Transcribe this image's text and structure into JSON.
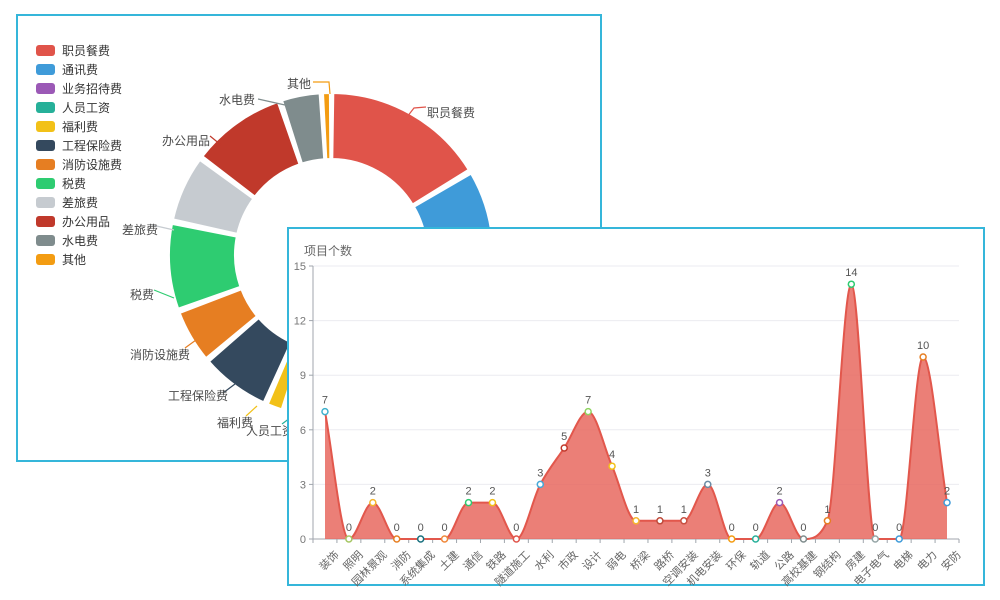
{
  "pie_panel": {
    "legend_items": [
      "职员餐费",
      "通讯费",
      "业务招待费",
      "人员工资",
      "福利费",
      "工程保险费",
      "消防设施费",
      "税费",
      "差旅费",
      "办公用品",
      "水电费",
      "其他"
    ]
  },
  "line_panel": {
    "title": "项目个数"
  },
  "chart_data": [
    {
      "type": "pie",
      "title": "",
      "legend_position": "left",
      "donut": true,
      "categories": [
        "职员餐费",
        "通讯费",
        "业务招待费",
        "人员工资",
        "福利费",
        "工程保险费",
        "消防设施费",
        "税费",
        "差旅费",
        "办公用品",
        "水电费",
        "其他"
      ],
      "values_percent": [
        16.4,
        13.9,
        5.0,
        19.4,
        1.9,
        7.2,
        5.6,
        8.9,
        6.9,
        9.7,
        4.2,
        0.9
      ],
      "colors": [
        "#e0544a",
        "#3f9bd9",
        "#9b59b6",
        "#26b099",
        "#f2c118",
        "#34495e",
        "#e67e22",
        "#2ecc71",
        "#c6cbd0",
        "#c0392b",
        "#7f8c8d",
        "#f39c12"
      ],
      "visible_callout_labels": [
        "职员餐费",
        "其他",
        "水电费",
        "办公用品",
        "差旅费",
        "税费",
        "消防设施费",
        "工程保险费",
        "福利费",
        "人员工资"
      ]
    },
    {
      "type": "area",
      "title": "项目个数",
      "categories": [
        "装饰",
        "照明",
        "园林景观",
        "消防",
        "系统集成",
        "土建",
        "通信",
        "铁路",
        "隧道施工",
        "水利",
        "市政",
        "设计",
        "弱电",
        "桥梁",
        "路桥",
        "空调安装",
        "机电安装",
        "环保",
        "轨道",
        "公路",
        "高校基建",
        "钢结构",
        "房建",
        "电子电气",
        "电梯",
        "电力",
        "安防"
      ],
      "values": [
        7,
        0,
        2,
        0,
        0,
        0,
        2,
        2,
        0,
        3,
        5,
        7,
        4,
        1,
        1,
        1,
        3,
        0,
        0,
        2,
        0,
        1,
        14,
        0,
        0,
        10,
        2
      ],
      "ylim": [
        0,
        15
      ],
      "yticks": [
        0,
        3,
        6,
        9,
        12,
        15
      ],
      "grid": true,
      "smooth": true,
      "line_color": "#e2574c",
      "area_color": "rgba(232,104,95,0.85)",
      "axis_color": "#a0a6ad",
      "grid_color": "#ebebf0",
      "label_color": "#555555",
      "point_colors": [
        "#3fb1cd",
        "#a5c662",
        "#f5b52e",
        "#e67e22",
        "#17707e",
        "#f0883a",
        "#2ecc71",
        "#f2c118",
        "#e0544a",
        "#45a8d8",
        "#c0392b",
        "#8fd460",
        "#f2c118",
        "#f5b52e",
        "#bf4a3a",
        "#c75042",
        "#6b8ba4",
        "#f39c12",
        "#26b099",
        "#9b59b6",
        "#7f8c8d",
        "#e67e22",
        "#2ecc71",
        "#95a5a6",
        "#3f9bd9",
        "#e67e22",
        "#3f9bd9"
      ]
    }
  ]
}
